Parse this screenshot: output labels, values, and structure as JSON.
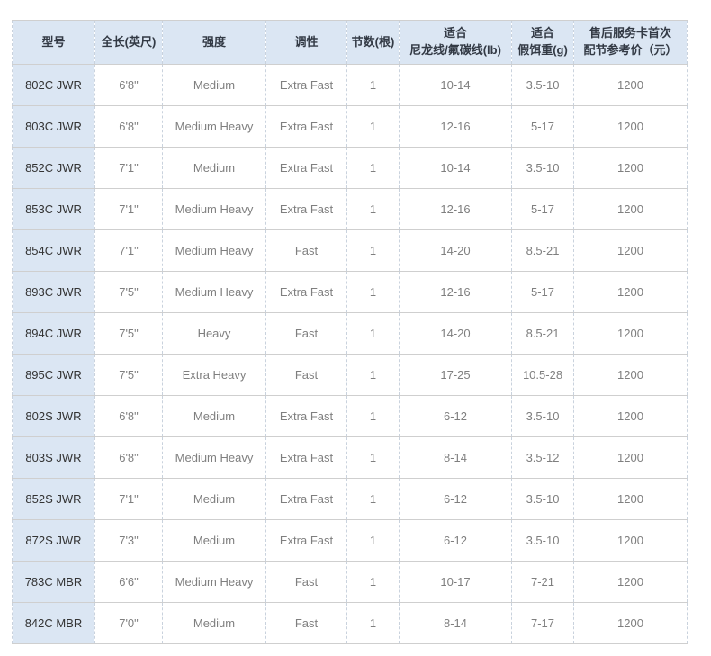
{
  "colors": {
    "header_bg": "#dbe6f3",
    "first_column_bg": "#dbe6f3",
    "solid_border": "#cfcfcf",
    "dashed_border": "#c9d2dd",
    "header_text": "#333a45",
    "model_text": "#333333",
    "cell_text": "#7f7f7f"
  },
  "table": {
    "columns": [
      {
        "key": "model",
        "label": "型号"
      },
      {
        "key": "length",
        "label": "全长(英尺)"
      },
      {
        "key": "power",
        "label": "强度"
      },
      {
        "key": "action",
        "label": "调性"
      },
      {
        "key": "sections",
        "label": "节数(根)"
      },
      {
        "key": "line",
        "label": "适合\n尼龙线/氟碳线(lb)"
      },
      {
        "key": "lure",
        "label": "适合\n假饵重(g)"
      },
      {
        "key": "price",
        "label": "售后服务卡首次\n配节参考价（元）"
      }
    ],
    "rows": [
      {
        "model": "802C JWR",
        "length": "6'8\"",
        "power": "Medium",
        "action": "Extra Fast",
        "sections": "1",
        "line": "10-14",
        "lure": "3.5-10",
        "price": "1200"
      },
      {
        "model": "803C JWR",
        "length": "6'8\"",
        "power": "Medium Heavy",
        "action": "Extra Fast",
        "sections": "1",
        "line": "12-16",
        "lure": "5-17",
        "price": "1200"
      },
      {
        "model": "852C JWR",
        "length": "7'1\"",
        "power": "Medium",
        "action": "Extra Fast",
        "sections": "1",
        "line": "10-14",
        "lure": "3.5-10",
        "price": "1200"
      },
      {
        "model": "853C JWR",
        "length": "7'1\"",
        "power": "Medium Heavy",
        "action": "Extra Fast",
        "sections": "1",
        "line": "12-16",
        "lure": "5-17",
        "price": "1200"
      },
      {
        "model": "854C JWR",
        "length": "7'1\"",
        "power": "Medium Heavy",
        "action": "Fast",
        "sections": "1",
        "line": "14-20",
        "lure": "8.5-21",
        "price": "1200"
      },
      {
        "model": "893C JWR",
        "length": "7'5\"",
        "power": "Medium Heavy",
        "action": "Extra Fast",
        "sections": "1",
        "line": "12-16",
        "lure": "5-17",
        "price": "1200"
      },
      {
        "model": "894C JWR",
        "length": "7'5\"",
        "power": "Heavy",
        "action": "Fast",
        "sections": "1",
        "line": "14-20",
        "lure": "8.5-21",
        "price": "1200"
      },
      {
        "model": "895C JWR",
        "length": "7'5\"",
        "power": "Extra Heavy",
        "action": "Fast",
        "sections": "1",
        "line": "17-25",
        "lure": "10.5-28",
        "price": "1200"
      },
      {
        "model": "802S JWR",
        "length": "6'8\"",
        "power": "Medium",
        "action": "Extra Fast",
        "sections": "1",
        "line": "6-12",
        "lure": "3.5-10",
        "price": "1200"
      },
      {
        "model": "803S JWR",
        "length": "6'8\"",
        "power": "Medium Heavy",
        "action": "Extra Fast",
        "sections": "1",
        "line": "8-14",
        "lure": "3.5-12",
        "price": "1200"
      },
      {
        "model": "852S JWR",
        "length": "7'1\"",
        "power": "Medium",
        "action": "Extra Fast",
        "sections": "1",
        "line": "6-12",
        "lure": "3.5-10",
        "price": "1200"
      },
      {
        "model": "872S JWR",
        "length": "7'3\"",
        "power": "Medium",
        "action": "Extra Fast",
        "sections": "1",
        "line": "6-12",
        "lure": "3.5-10",
        "price": "1200"
      },
      {
        "model": "783C MBR",
        "length": "6'6\"",
        "power": "Medium Heavy",
        "action": "Fast",
        "sections": "1",
        "line": "10-17",
        "lure": "7-21",
        "price": "1200"
      },
      {
        "model": "842C MBR",
        "length": "7'0\"",
        "power": "Medium",
        "action": "Fast",
        "sections": "1",
        "line": "8-14",
        "lure": "7-17",
        "price": "1200"
      }
    ]
  }
}
